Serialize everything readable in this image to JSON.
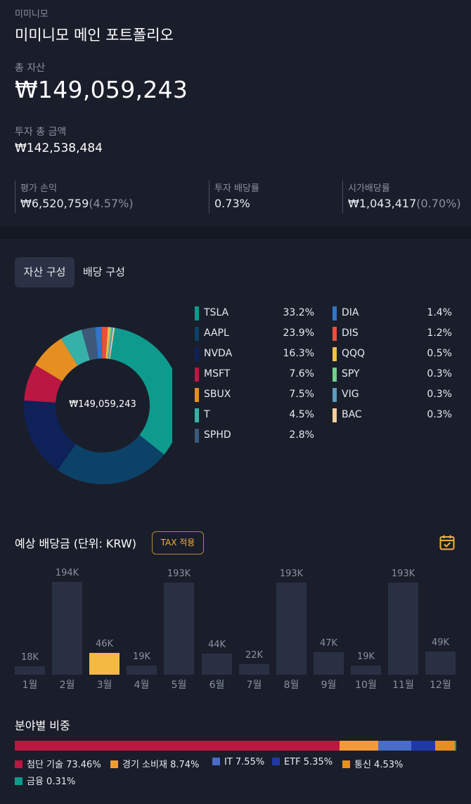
{
  "header": {
    "breadcrumb": "미미니모",
    "title": "미미니모 메인 포트폴리오",
    "total_assets_label": "총 자산",
    "total_assets_value": "₩149,059,243",
    "invested_label": "투자 총 금액",
    "invested_value": "₩142,538,484"
  },
  "stats": [
    {
      "label": "평가 손익",
      "value": "₩6,520,759",
      "sub": "(4.57%)"
    },
    {
      "label": "투자 배당률",
      "value": "0.73%",
      "sub": ""
    },
    {
      "label": "시가배당률",
      "value": "₩1,043,417",
      "sub": "(0.70%)"
    }
  ],
  "tabs": {
    "asset": "자산 구성",
    "dividend": "배당 구성"
  },
  "donut": {
    "center": "₩149,059,243",
    "holdings": [
      {
        "name": "TSLA",
        "pct": "33.2%",
        "value": 33.2,
        "color": "#0e9b8e"
      },
      {
        "name": "AAPL",
        "pct": "23.9%",
        "value": 23.9,
        "color": "#0d4268"
      },
      {
        "name": "NVDA",
        "pct": "16.3%",
        "value": 16.3,
        "color": "#0f2159"
      },
      {
        "name": "MSFT",
        "pct": "7.6%",
        "value": 7.6,
        "color": "#bb1743"
      },
      {
        "name": "SBUX",
        "pct": "7.5%",
        "value": 7.5,
        "color": "#e58f22"
      },
      {
        "name": "T",
        "pct": "4.5%",
        "value": 4.5,
        "color": "#36b1a8"
      },
      {
        "name": "SPHD",
        "pct": "2.8%",
        "value": 2.8,
        "color": "#3e5879"
      },
      {
        "name": "DIA",
        "pct": "1.4%",
        "value": 1.4,
        "color": "#2f76c4"
      },
      {
        "name": "DIS",
        "pct": "1.2%",
        "value": 1.2,
        "color": "#e8513a"
      },
      {
        "name": "QQQ",
        "pct": "0.5%",
        "value": 0.5,
        "color": "#f2c04a"
      },
      {
        "name": "SPY",
        "pct": "0.3%",
        "value": 0.3,
        "color": "#6fd089"
      },
      {
        "name": "VIG",
        "pct": "0.3%",
        "value": 0.3,
        "color": "#5b9cbf"
      },
      {
        "name": "BAC",
        "pct": "0.3%",
        "value": 0.3,
        "color": "#f6cf9a"
      }
    ]
  },
  "dividends": {
    "title": "예상 배당금 (단위: KRW)",
    "tax_button": "TAX 적용",
    "calendar_icon": "calendar-check-icon",
    "highlight_color": "#f4b942",
    "months": [
      {
        "label": "1월",
        "value_label": "18K",
        "value": 18
      },
      {
        "label": "2월",
        "value_label": "194K",
        "value": 194
      },
      {
        "label": "3월",
        "value_label": "46K",
        "value": 46,
        "highlight": true
      },
      {
        "label": "4월",
        "value_label": "19K",
        "value": 19
      },
      {
        "label": "5월",
        "value_label": "193K",
        "value": 193
      },
      {
        "label": "6월",
        "value_label": "44K",
        "value": 44
      },
      {
        "label": "7월",
        "value_label": "22K",
        "value": 22
      },
      {
        "label": "8월",
        "value_label": "193K",
        "value": 193
      },
      {
        "label": "9월",
        "value_label": "47K",
        "value": 47
      },
      {
        "label": "10월",
        "value_label": "19K",
        "value": 19
      },
      {
        "label": "11월",
        "value_label": "193K",
        "value": 193
      },
      {
        "label": "12월",
        "value_label": "49K",
        "value": 49
      }
    ]
  },
  "sectors": {
    "title": "분야별 비중",
    "items": [
      {
        "label": "첨단 기술 73.46%",
        "value": 73.46,
        "color": "#bb1743"
      },
      {
        "label": "경기 소비재 8.74%",
        "value": 8.74,
        "color": "#f29a38"
      },
      {
        "label": "IT 7.55%",
        "value": 7.55,
        "color": "#4a6cc8"
      },
      {
        "label": "ETF 5.35%",
        "value": 5.35,
        "color": "#1f3aa6"
      },
      {
        "label": "통신 4.53%",
        "value": 4.53,
        "color": "#e58f22"
      },
      {
        "label": "금융 0.31%",
        "value": 0.31,
        "color": "#0e9b8e"
      }
    ]
  }
}
